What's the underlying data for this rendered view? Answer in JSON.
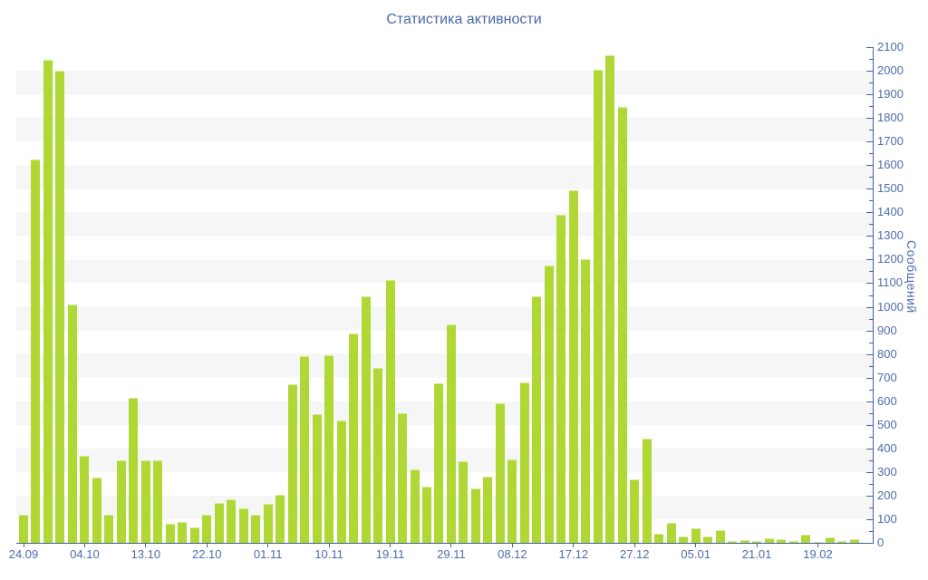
{
  "title": "Статистика активности",
  "y_axis": {
    "label": "Сообщений",
    "min": 0,
    "max": 2100,
    "major_step": 100,
    "minor_step": 50
  },
  "x_axis": {
    "tick_labels": [
      "24.09",
      "04.10",
      "13.10",
      "22.10",
      "01.11",
      "10.11",
      "19.11",
      "29.11",
      "08.12",
      "17.12",
      "27.12",
      "05.01",
      "21.01",
      "19.02"
    ]
  },
  "colors": {
    "bar": "#afd834",
    "bar_top_edge": "#d3ec90",
    "stripe": "#f6f6f6",
    "axis_line": "#44609f",
    "tick_text": "#4d6cae",
    "title_text": "#4a67a8"
  },
  "chart_data": {
    "type": "bar",
    "title": "Статистика активности",
    "xlabel": "",
    "ylabel": "Сообщений",
    "ylim": [
      0,
      2100
    ],
    "grid": "horizontal-stripes",
    "legend": "none",
    "values": [
      120,
      1625,
      2045,
      2000,
      1010,
      370,
      275,
      120,
      350,
      615,
      350,
      350,
      80,
      90,
      65,
      120,
      170,
      185,
      145,
      120,
      165,
      205,
      670,
      790,
      545,
      795,
      520,
      885,
      1045,
      740,
      1115,
      550,
      310,
      240,
      675,
      925,
      345,
      230,
      280,
      590,
      355,
      680,
      1045,
      1175,
      1390,
      1495,
      1200,
      2005,
      2065,
      1845,
      270,
      440,
      40,
      85,
      28,
      60,
      26,
      54,
      8,
      13,
      8,
      20,
      17,
      8,
      33,
      5,
      22,
      7,
      14
    ],
    "x_tick_positions": [
      0,
      5,
      10,
      15,
      20,
      25,
      30,
      35,
      40,
      45,
      50,
      55,
      60,
      65
    ],
    "x_tick_labels": [
      "24.09",
      "04.10",
      "13.10",
      "22.10",
      "01.11",
      "10.11",
      "19.11",
      "29.11",
      "08.12",
      "17.12",
      "27.12",
      "05.01",
      "21.01",
      "19.02"
    ]
  }
}
